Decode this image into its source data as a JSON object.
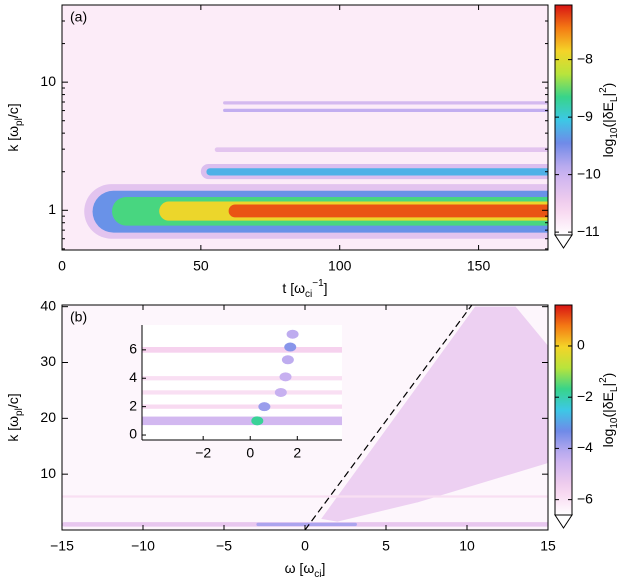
{
  "chart_data": [
    {
      "type": "heatmap",
      "panel_label": "(a)",
      "xlabel": [
        {
          "text": "t [ω"
        },
        {
          "text": "ci",
          "shift": "sub"
        },
        {
          "text": "−1",
          "shift": "super"
        },
        {
          "text": "]"
        }
      ],
      "ylabel": [
        {
          "text": "k [ω"
        },
        {
          "text": "pl",
          "shift": "sub"
        },
        {
          "text": "/c]"
        }
      ],
      "xlim": [
        0,
        175
      ],
      "ylim": [
        0.49,
        40
      ],
      "yscale": "log",
      "xticks": [
        0,
        50,
        100,
        150
      ],
      "yticks": [
        1,
        10
      ],
      "yminorticks": [
        0.5,
        0.6,
        0.7,
        0.8,
        0.9,
        2,
        3,
        4,
        5,
        6,
        7,
        8,
        9,
        20,
        30,
        40
      ],
      "background_level": -10.85,
      "colorbar": {
        "clim": [
          -11.05,
          -7.05
        ],
        "extend": "min",
        "ticks": [
          {
            "value": -8,
            "label": "−8"
          },
          {
            "value": -9,
            "label": "−9"
          },
          {
            "value": -10,
            "label": "−10"
          },
          {
            "value": -11,
            "label": "−11"
          }
        ],
        "label": [
          {
            "text": "log"
          },
          {
            "text": "10",
            "shift": "sub"
          },
          {
            "text": "(|δE"
          },
          {
            "text": "L",
            "shift": "sub"
          },
          {
            "text": "|"
          },
          {
            "text": "2",
            "shift": "super"
          },
          {
            "text": ")"
          }
        ]
      },
      "bands": [
        {
          "x": [
            8,
            175
          ],
          "y": [
            0.6,
            1.6
          ],
          "level": -10.3
        },
        {
          "x": [
            11,
            175
          ],
          "y": [
            0.67,
            1.42
          ],
          "level": -9.4
        },
        {
          "x": [
            18,
            175
          ],
          "y": [
            0.76,
            1.27
          ],
          "level": -8.6
        },
        {
          "x": [
            35,
            175
          ],
          "y": [
            0.83,
            1.17
          ],
          "level": -7.9
        },
        {
          "x": [
            60,
            175
          ],
          "y": [
            0.88,
            1.11
          ],
          "level": -7.3
        },
        {
          "x": [
            50,
            175
          ],
          "y": [
            1.75,
            2.3
          ],
          "level": -10.2
        },
        {
          "x": [
            52,
            175
          ],
          "y": [
            1.87,
            2.13
          ],
          "level": -9.2
        },
        {
          "x": [
            55,
            175
          ],
          "y": [
            2.85,
            3.1
          ],
          "level": -10.3
        },
        {
          "x": [
            58,
            175
          ],
          "y": [
            5.85,
            6.2
          ],
          "level": -9.9
        },
        {
          "x": [
            58,
            175
          ],
          "y": [
            6.7,
            7.1
          ],
          "level": -10.1
        }
      ]
    },
    {
      "type": "heatmap",
      "panel_label": "(b)",
      "xlabel": [
        {
          "text": "ω [ω"
        },
        {
          "text": "ci",
          "shift": "sub"
        },
        {
          "text": "]"
        }
      ],
      "ylabel": [
        {
          "text": "k [ω"
        },
        {
          "text": "pl",
          "shift": "sub"
        },
        {
          "text": "/c]"
        }
      ],
      "xlim": [
        -15,
        15
      ],
      "ylim": [
        0,
        40.3
      ],
      "yscale": "linear",
      "xticks": [
        {
          "value": -15,
          "label": "−15"
        },
        {
          "value": -10,
          "label": "−10"
        },
        {
          "value": -5,
          "label": "−5"
        },
        0,
        5,
        10,
        15
      ],
      "yticks": [
        10,
        20,
        30,
        40
      ],
      "background_level": -6.4,
      "colorbar": {
        "clim": [
          -6.6,
          1.6
        ],
        "extend": "min",
        "ticks": [
          0,
          {
            "value": -2,
            "label": "−2"
          },
          {
            "value": -4,
            "label": "−4"
          },
          {
            "value": -6,
            "label": "−6"
          }
        ],
        "label": [
          {
            "text": "log"
          },
          {
            "text": "10",
            "shift": "sub"
          },
          {
            "text": "(|δE"
          },
          {
            "text": "L",
            "shift": "sub"
          },
          {
            "text": "|"
          },
          {
            "text": "2",
            "shift": "super"
          },
          {
            "text": ")"
          }
        ]
      },
      "bands": [
        {
          "x": [
            -15,
            15
          ],
          "y": [
            0.6,
            1.4
          ],
          "level": -5.2
        },
        {
          "x": [
            -3,
            3
          ],
          "y": [
            0.7,
            1.3
          ],
          "level": -4
        },
        {
          "x": [
            -15,
            15
          ],
          "y": [
            5.8,
            6.2
          ],
          "level": -5.9
        }
      ],
      "diffuse_region": {
        "x": [
          1,
          10.5,
          13,
          15,
          15,
          7,
          2
        ],
        "y": [
          2,
          40,
          40,
          33,
          12,
          5,
          1.5
        ],
        "level": -5.2
      },
      "dashed_line": {
        "x": [
          0,
          10.3
        ],
        "y": [
          0,
          40.3
        ]
      },
      "inset": {
        "xlim": [
          -4.6,
          3.9
        ],
        "ylim": [
          -0.35,
          7.75
        ],
        "xticks": [
          {
            "value": -2,
            "label": "−2"
          },
          0,
          2
        ],
        "yticks": [
          0,
          2,
          4,
          6
        ],
        "bands": [
          {
            "x": [
              -4.6,
              3.9
            ],
            "y": [
              0.7,
              1.3
            ],
            "level": -4.6
          },
          {
            "x": [
              -4.6,
              3.9
            ],
            "y": [
              1.85,
              2.15
            ],
            "level": -5.8
          },
          {
            "x": [
              -4.6,
              3.9
            ],
            "y": [
              2.85,
              3.15
            ],
            "level": -5.9
          },
          {
            "x": [
              -4.6,
              3.9
            ],
            "y": [
              3.85,
              4.15
            ],
            "level": -5.9
          },
          {
            "x": [
              -4.6,
              3.9
            ],
            "y": [
              5.8,
              6.2
            ],
            "level": -5.6
          }
        ],
        "spots": [
          {
            "x": 0.3,
            "y": 1,
            "level": -1.8
          },
          {
            "x": 0.6,
            "y": 2,
            "level": -3.8
          },
          {
            "x": 1.3,
            "y": 3,
            "level": -4.3
          },
          {
            "x": 1.5,
            "y": 4.1,
            "level": -4.3
          },
          {
            "x": 1.6,
            "y": 5.3,
            "level": -4.2
          },
          {
            "x": 1.7,
            "y": 6.2,
            "level": -3.6
          },
          {
            "x": 1.8,
            "y": 7.1,
            "level": -4.2
          }
        ]
      }
    }
  ]
}
